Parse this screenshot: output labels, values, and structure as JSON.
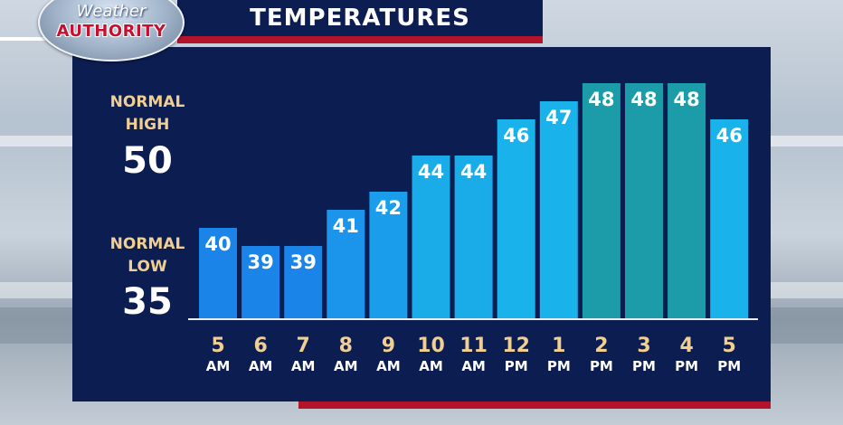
{
  "header": {
    "title": "TEMPERATURES",
    "logo_top": "Weather",
    "logo_bottom": "AUTHORITY"
  },
  "normals": {
    "high_label_1": "NORMAL",
    "high_label_2": "HIGH",
    "high_value": "50",
    "low_label_1": "NORMAL",
    "low_label_2": "LOW",
    "low_value": "35"
  },
  "colors": {
    "panel": "#0c1d52",
    "accent_red": "#b3142b",
    "label_gold": "#f1cf92",
    "bar_cool": "#1a84e8",
    "bar_mild": "#1ab0ea",
    "bar_warm": "#1b9ca8"
  },
  "chart_data": {
    "type": "bar",
    "title": "TEMPERATURES",
    "categories": [
      "5 AM",
      "6 AM",
      "7 AM",
      "8 AM",
      "9 AM",
      "10 AM",
      "11 AM",
      "12 PM",
      "1 PM",
      "2 PM",
      "3 PM",
      "4 PM",
      "5 PM"
    ],
    "tick_numbers": [
      "5",
      "6",
      "7",
      "8",
      "9",
      "10",
      "11",
      "12",
      "1",
      "2",
      "3",
      "4",
      "5"
    ],
    "tick_periods": [
      "AM",
      "AM",
      "AM",
      "AM",
      "AM",
      "AM",
      "AM",
      "PM",
      "PM",
      "PM",
      "PM",
      "PM",
      "PM"
    ],
    "values": [
      40,
      39,
      39,
      41,
      42,
      44,
      44,
      46,
      47,
      48,
      48,
      48,
      46
    ],
    "value_labels": [
      "40",
      "39",
      "39",
      "41",
      "42",
      "44",
      "44",
      "46",
      "47",
      "48",
      "48",
      "48",
      "46"
    ],
    "bar_colors": [
      "#1a84e8",
      "#1a84e8",
      "#1a84e8",
      "#1a95eb",
      "#1a9eec",
      "#1aace9",
      "#1aace9",
      "#1ab2ea",
      "#1ab2ea",
      "#1b9ca8",
      "#1b9ca8",
      "#1b9ca8",
      "#1ab2ea"
    ],
    "ylim": [
      35,
      49
    ],
    "grid": false,
    "legend": "none"
  }
}
